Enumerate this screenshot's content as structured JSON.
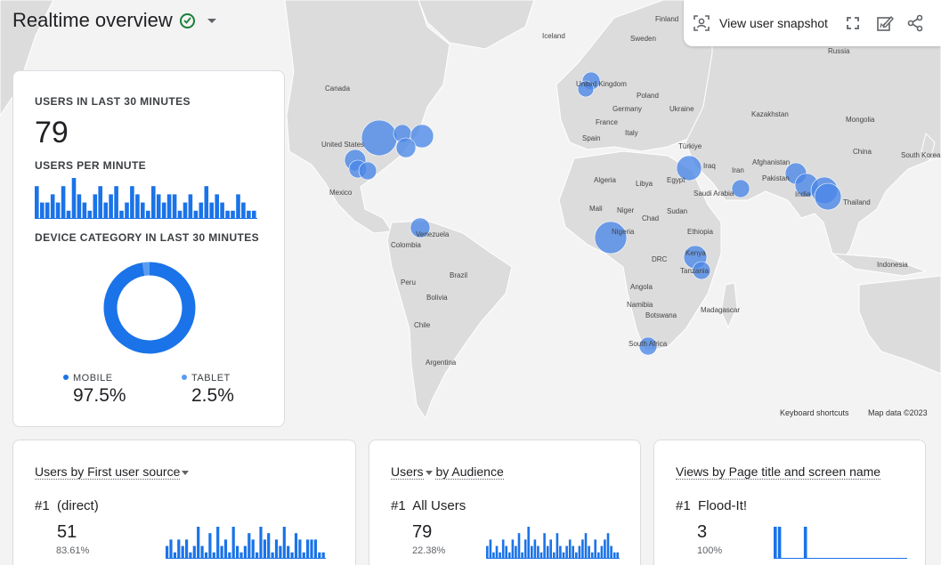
{
  "header": {
    "title": "Realtime overview",
    "snapshot_label": "View user snapshot"
  },
  "icons": {
    "status": "check-circle-icon",
    "title_menu": "caret-down-icon",
    "snapshot": "user-snapshot-icon",
    "fullscreen": "fullscreen-icon",
    "customize": "edit-report-icon",
    "share": "share-icon"
  },
  "map": {
    "labels": [
      "Finland",
      "Iceland",
      "Sweden",
      "Russia",
      "Canada",
      "United Kingdom",
      "Poland",
      "Germany",
      "Ukraine",
      "Kazakhstan",
      "Mongolia",
      "France",
      "Italy",
      "Spain",
      "Türkiye",
      "China",
      "South Korea",
      "United States",
      "Iraq",
      "Afghanistan",
      "Iran",
      "Pakistan",
      "Algeria",
      "Libya",
      "Egypt",
      "Saudi Arabia",
      "India",
      "Mexico",
      "Thailand",
      "Mali",
      "Niger",
      "Chad",
      "Sudan",
      "Venezuela",
      "Nigeria",
      "Ethiopia",
      "Colombia",
      "Kenya",
      "DRC",
      "Tanzania",
      "Indonesia",
      "Brazil",
      "Peru",
      "Angola",
      "Bolivia",
      "Namibia",
      "Madagascar",
      "Botswana",
      "Chile",
      "South Africa",
      "Argentina"
    ],
    "keyboard_shortcuts": "Keyboard shortcuts",
    "map_data": "Map data ©2023"
  },
  "users_card": {
    "title": "USERS IN LAST 30 MINUTES",
    "value": "79",
    "per_minute_title": "USERS PER MINUTE",
    "device_title": "DEVICE CATEGORY IN LAST 30 MINUTES",
    "per_minute": [
      4,
      2,
      2,
      3,
      2,
      4,
      1,
      5,
      3,
      2,
      1,
      3,
      4,
      2,
      3,
      4,
      1,
      2,
      4,
      3,
      2,
      1,
      4,
      3,
      2,
      3,
      3,
      1,
      2,
      3,
      1,
      2,
      4,
      2,
      3,
      2,
      1,
      1,
      3,
      2,
      1,
      1
    ],
    "devices": [
      {
        "label": "MOBILE",
        "value": "97.5%",
        "share": 0.975,
        "color": "#1a73e8"
      },
      {
        "label": "TABLET",
        "value": "2.5%",
        "share": 0.025,
        "color": "#5b9cf2"
      }
    ]
  },
  "source_card": {
    "title": "Users by First user source",
    "rank": "#1",
    "name": "(direct)",
    "value": "51",
    "pct": "83.61%",
    "bars": [
      2,
      3,
      1,
      3,
      2,
      3,
      1,
      2,
      5,
      2,
      1,
      4,
      1,
      5,
      2,
      3,
      1,
      5,
      2,
      1,
      2,
      4,
      3,
      1,
      5,
      3,
      4,
      1,
      3,
      2,
      5,
      2,
      1,
      4,
      3,
      1,
      3,
      3,
      3,
      1,
      1
    ]
  },
  "audience_card": {
    "title_a": "Users",
    "title_b": "by Audience",
    "rank": "#1",
    "name": "All Users",
    "value": "79",
    "pct": "22.38%",
    "bars": [
      2,
      3,
      1,
      2,
      1,
      3,
      2,
      1,
      3,
      2,
      4,
      1,
      3,
      5,
      2,
      3,
      2,
      1,
      4,
      2,
      3,
      1,
      4,
      2,
      1,
      2,
      3,
      2,
      1,
      2,
      3,
      4,
      2,
      1,
      3,
      1,
      2,
      3,
      4,
      2,
      1,
      1
    ]
  },
  "page_card": {
    "title": "Views by Page title and screen name",
    "rank": "#1",
    "name": "Flood-It!",
    "value": "3",
    "pct": "100%",
    "bars": [
      1,
      1,
      0,
      0,
      0,
      0,
      0,
      1,
      0,
      0,
      0,
      0,
      0,
      0,
      0,
      0,
      0,
      0,
      0,
      0,
      0,
      0,
      0,
      0,
      0,
      0,
      0,
      0,
      0,
      0,
      0
    ]
  },
  "colors": {
    "accent": "#1a73e8",
    "bubble": "#4a86e8",
    "success": "#188038"
  }
}
